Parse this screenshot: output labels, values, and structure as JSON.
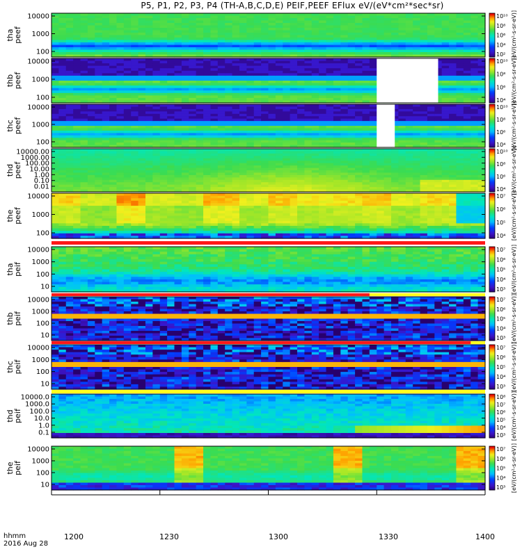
{
  "title": "P5, P1, P2, P3, P4 (TH-A,B,C,D,E) PEIF,PEEF EFlux eV/(eV*cm²*sec*sr)",
  "footer": {
    "line1": "hhmm",
    "line2": "2016 Aug 28"
  },
  "xaxis": {
    "ticks": [
      "1200",
      "1230",
      "1300",
      "1330",
      "1400"
    ]
  },
  "colorbar_label_text": "[eV/(cm²-s-sr-eV)]",
  "colors": {
    "fill_white": "#ffffff",
    "bar_red": "#ff1818",
    "bar_yellow": "#ffff1e"
  },
  "chart_data": {
    "type": "heatmap",
    "x_range": [
      "12:00",
      "14:00"
    ],
    "colormap": "rainbow (purple-blue-cyan-green-yellow-red)",
    "panels": [
      {
        "id": "tha_peef",
        "label": [
          "tha",
          "peef"
        ],
        "yticks": [
          "100",
          "1000",
          "10000"
        ],
        "cbar_ticks": [
          "10²",
          "10⁴",
          "10⁶",
          "10⁸",
          "10¹⁰"
        ],
        "pattern": "electron"
      },
      {
        "id": "thb_peef",
        "label": [
          "thb",
          "peef"
        ],
        "yticks": [
          "100",
          "1000",
          "10000"
        ],
        "cbar_ticks": [
          "10⁴",
          "10⁶",
          "10⁸",
          "10¹⁰"
        ],
        "pattern": "electron_gap",
        "data_gap": [
          "13:30",
          "13:47"
        ]
      },
      {
        "id": "thc_peef",
        "label": [
          "thc",
          "peef"
        ],
        "yticks": [
          "100",
          "1000",
          "10000"
        ],
        "cbar_ticks": [
          "10⁴",
          "10⁶",
          "10⁸",
          "10¹⁰"
        ],
        "pattern": "electron_gap",
        "data_gap": [
          "13:30",
          "13:35"
        ]
      },
      {
        "id": "thd_peef",
        "label": [
          "thd",
          "peef"
        ],
        "yticks": [
          "0.01",
          "0.10",
          "1.00",
          "10.00",
          "100.00",
          "1000.00",
          "10000.00"
        ],
        "cbar_ticks": [
          "10⁴",
          "10⁶",
          "10⁸",
          "10¹⁰"
        ],
        "pattern": "electron_d"
      },
      {
        "id": "the_peef",
        "label": [
          "the",
          "peef"
        ],
        "yticks": [
          "100",
          "1000",
          "10000"
        ],
        "cbar_ticks": [
          "10⁴",
          "10⁵",
          "10⁶",
          "10⁷"
        ],
        "pattern": "electron_e",
        "bar_below": "red"
      },
      {
        "id": "tha_peif",
        "label": [
          "tha",
          "peif"
        ],
        "yticks": [
          "10",
          "100",
          "1000",
          "10000"
        ],
        "cbar_ticks": [
          "10³",
          "10⁴",
          "10⁵",
          "10⁶",
          "10⁷"
        ],
        "pattern": "ion_a",
        "bar_below": "red_yellow"
      },
      {
        "id": "thb_peif",
        "label": [
          "thb",
          "peif"
        ],
        "yticks": [
          "10",
          "100",
          "1000",
          "10000"
        ],
        "cbar_ticks": [
          "10³",
          "10⁴",
          "10⁵",
          "10⁶",
          "10⁷"
        ],
        "pattern": "ion_noisy",
        "bar_below": "red_yellow"
      },
      {
        "id": "thc_peif",
        "label": [
          "thc",
          "peif"
        ],
        "yticks": [
          "10",
          "100",
          "1000",
          "10000"
        ],
        "cbar_ticks": [
          "10³",
          "10⁴",
          "10⁵",
          "10⁶",
          "10⁷"
        ],
        "pattern": "ion_noisy",
        "bar_below": "red_yellow2"
      },
      {
        "id": "thd_peif",
        "label": [
          "thd",
          "peif"
        ],
        "yticks": [
          "0.1",
          "1.0",
          "10.0",
          "100.0",
          "1000.0",
          "10000.0"
        ],
        "cbar_ticks": [
          "10³",
          "10⁴",
          "10⁵",
          "10⁶",
          "10⁷",
          "10⁸"
        ],
        "pattern": "ion_d",
        "bar_below": "yellow"
      },
      {
        "id": "the_peif",
        "label": [
          "the",
          "peif"
        ],
        "yticks": [
          "10",
          "100",
          "1000",
          "10000"
        ],
        "cbar_ticks": [
          "10³",
          "10⁴",
          "10⁵",
          "10⁶",
          "10⁷"
        ],
        "pattern": "ion_e"
      }
    ]
  }
}
